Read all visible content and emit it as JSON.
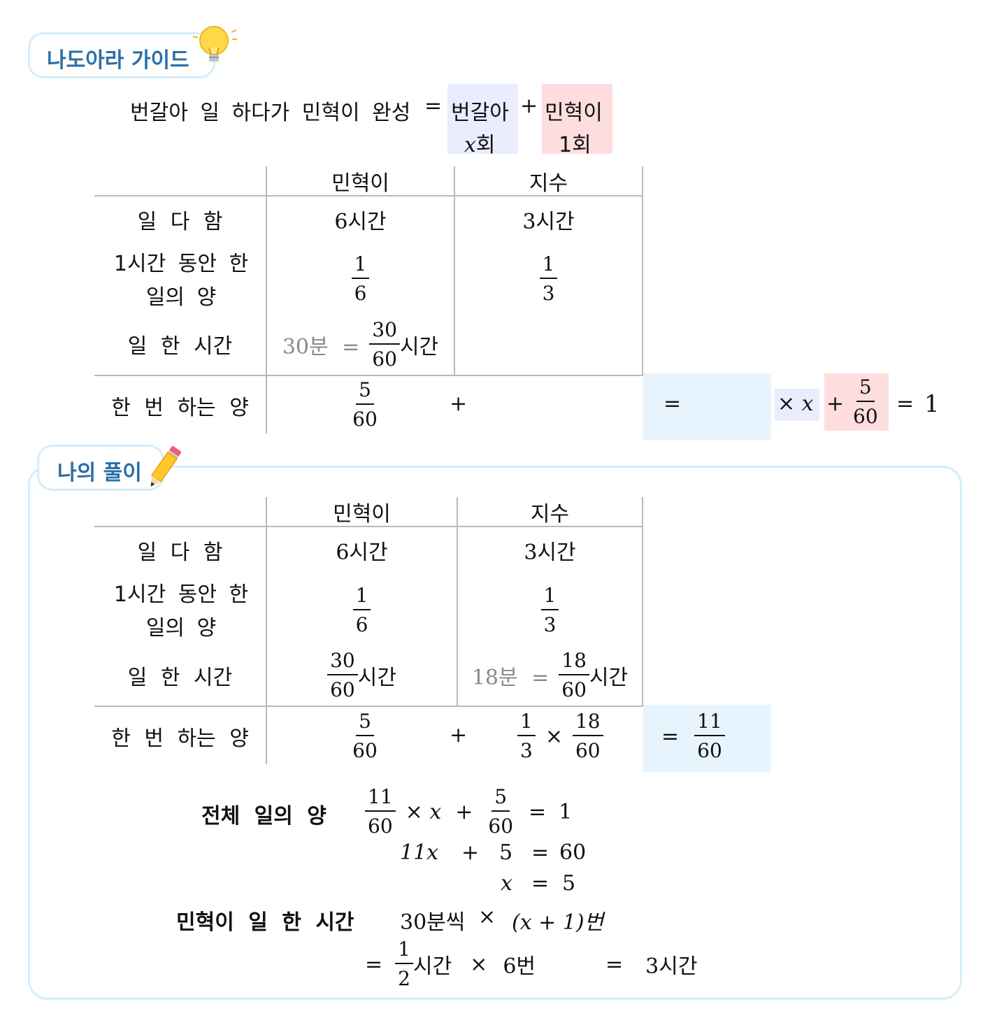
{
  "guide": {
    "title": "나도아라 가이드",
    "equation": {
      "left": "번갈아 일 하다가 민혁이 완성",
      "eq": "=",
      "box1_top": "번갈아",
      "box1_var": "x",
      "box1_bottom": "회",
      "plus": "+",
      "box2_top": "민혁이",
      "box2_bottom": "1회"
    },
    "table": {
      "headers": [
        "민혁이",
        "지수"
      ],
      "rows": {
        "r1_label": "일 다 함",
        "r1_c1": "6시간",
        "r1_c2": "3시간",
        "r2_label_1": "1시간 동안 한",
        "r2_label_2": "일의 양",
        "r2_c1_num": "1",
        "r2_c1_den": "6",
        "r2_c2_num": "1",
        "r2_c2_den": "3",
        "r3_label": "일 한 시간",
        "r3_c1_gray": "30분 =",
        "r3_c1_num": "30",
        "r3_c1_den": "60",
        "r3_c1_unit": "시간",
        "r4_label": "한 번 하는 양",
        "r4_c1_num": "5",
        "r4_c1_den": "60",
        "r4_plus": "+",
        "r4_eq": "="
      },
      "tail": {
        "times_x": "× x",
        "plus": "+",
        "num": "5",
        "den": "60",
        "eq": "=",
        "one": "1"
      }
    }
  },
  "solution": {
    "title": "나의 풀이",
    "table": {
      "headers": [
        "민혁이",
        "지수"
      ],
      "r1_label": "일 다 함",
      "r1_c1": "6시간",
      "r1_c2": "3시간",
      "r2_label_1": "1시간 동안 한",
      "r2_label_2": "일의 양",
      "r2_c1_num": "1",
      "r2_c1_den": "6",
      "r2_c2_num": "1",
      "r2_c2_den": "3",
      "r3_label": "일 한 시간",
      "r3_c1_num": "30",
      "r3_c1_den": "60",
      "r3_c1_unit": "시간",
      "r3_c2_gray": "18분 =",
      "r3_c2_num": "18",
      "r3_c2_den": "60",
      "r3_c2_unit": "시간",
      "r4_label": "한 번 하는 양",
      "r4_c1_num": "5",
      "r4_c1_den": "60",
      "r4_plus": "+",
      "r4_c2_a_num": "1",
      "r4_c2_a_den": "3",
      "r4_times": "×",
      "r4_c2_b_num": "18",
      "r4_c2_b_den": "60",
      "r4_eq": "=",
      "r4_res_num": "11",
      "r4_res_den": "60"
    },
    "work": {
      "total_label": "전체 일의 양",
      "l1_num": "11",
      "l1_den": "60",
      "l1_times_x": "× x",
      "l1_plus": "+",
      "l1_b_num": "5",
      "l1_b_den": "60",
      "l1_eq": "=",
      "l1_rhs": "1",
      "l2_lhs": "11x",
      "l2_plus": "+",
      "l2_mid": "5",
      "l2_eq": "=",
      "l2_rhs": "60",
      "l3_lhs": "x",
      "l3_eq": "=",
      "l3_rhs": "5",
      "time_label": "민혁이 일 한 시간",
      "l4_text": "30분씩",
      "l4_times": "×",
      "l4_paren": "(x + 1)번",
      "l5_eq": "=",
      "l5_num": "1",
      "l5_den": "2",
      "l5_unit": "시간",
      "l5_times": "×",
      "l5_count": "6번",
      "l5_eq2": "=",
      "l5_result": "3시간"
    }
  }
}
